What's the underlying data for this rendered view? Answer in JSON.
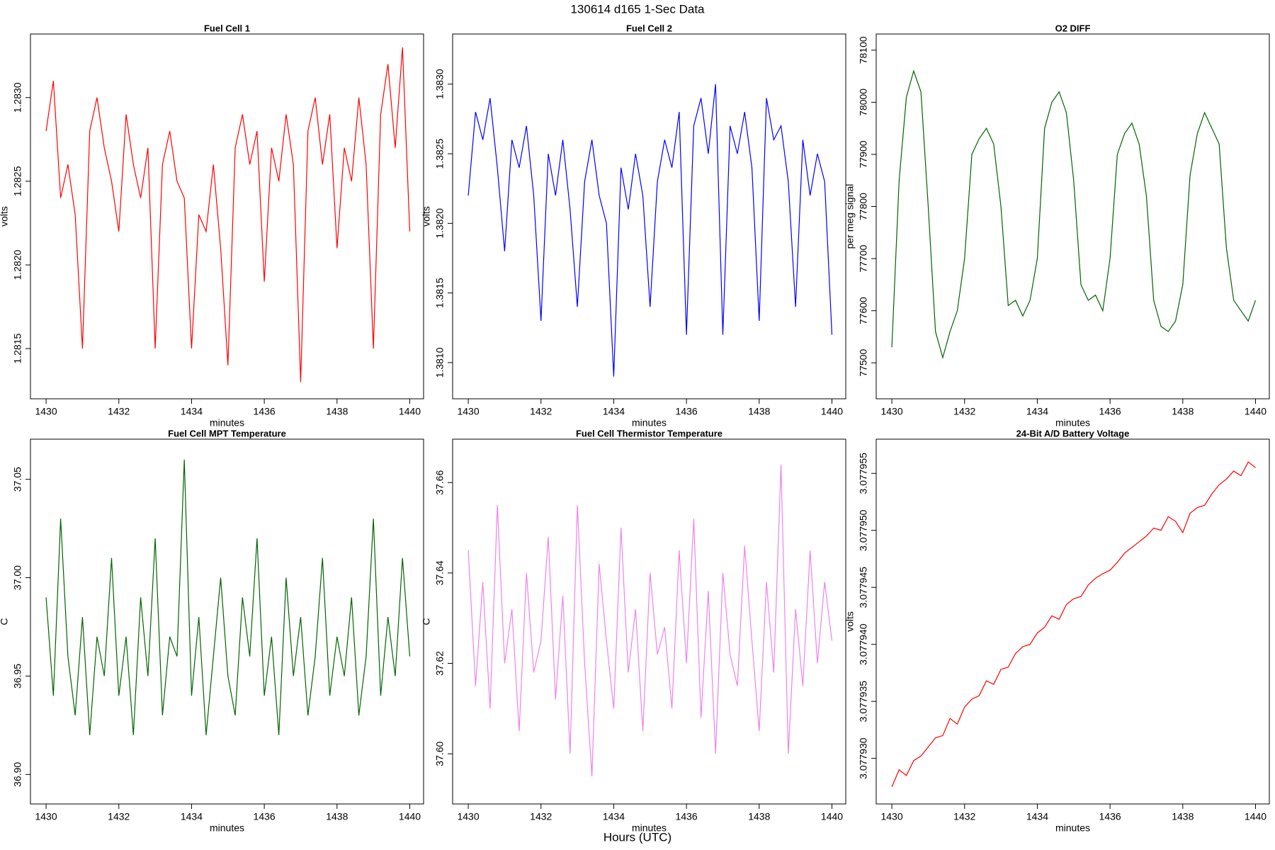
{
  "title": "130614   d165   1-Sec Data",
  "xlabel": "Hours (UTC)",
  "chart_data": [
    {
      "type": "line",
      "title": "Fuel Cell 1",
      "xlabel": "minutes",
      "ylabel": "volts",
      "color": "#ff0000",
      "xlim": [
        1429.57,
        1440.38
      ],
      "xticks": [
        1430,
        1432,
        1434,
        1436,
        1438,
        1440
      ],
      "ylim": [
        1.2812,
        1.28338
      ],
      "yticks": [
        {
          "value": 1.2815,
          "label": "1.2815"
        },
        {
          "value": 1.282,
          "label": "1.2820"
        },
        1.2825,
        {
          "value": 1.283,
          "label": "1.2830"
        }
      ],
      "x": [
        1430,
        1430.2,
        1430.4,
        1430.6,
        1430.8,
        1431,
        1431.2,
        1431.4,
        1431.6,
        1431.8,
        1432,
        1432.2,
        1432.4,
        1432.6,
        1432.8,
        1433,
        1433.2,
        1433.4,
        1433.6,
        1433.8,
        1434,
        1434.2,
        1434.4,
        1434.6,
        1434.8,
        1435,
        1435.2,
        1435.4,
        1435.6,
        1435.8,
        1436,
        1436.2,
        1436.4,
        1436.6,
        1436.8,
        1437,
        1437.2,
        1437.4,
        1437.6,
        1437.8,
        1438,
        1438.2,
        1438.4,
        1438.6,
        1438.8,
        1439,
        1439.2,
        1439.4,
        1439.6,
        1439.8,
        1440
      ],
      "values": [
        1.2828,
        1.2831,
        1.2824,
        1.2826,
        1.2823,
        1.2815,
        1.2828,
        1.283,
        1.2827,
        1.2825,
        1.2822,
        1.2829,
        1.2826,
        1.2824,
        1.2827,
        1.2815,
        1.2826,
        1.2828,
        1.2825,
        1.2824,
        1.2815,
        1.2823,
        1.2822,
        1.2826,
        1.2821,
        1.2814,
        1.2827,
        1.2829,
        1.2826,
        1.2828,
        1.2819,
        1.2827,
        1.2825,
        1.2829,
        1.2826,
        1.2813,
        1.2828,
        1.283,
        1.2826,
        1.2829,
        1.2821,
        1.2827,
        1.2825,
        1.283,
        1.2826,
        1.2815,
        1.2829,
        1.2832,
        1.2827,
        1.2833,
        1.2822
      ]
    },
    {
      "type": "line",
      "title": "Fuel Cell 2",
      "xlabel": "minutes",
      "ylabel": "volts",
      "color": "#0000ff",
      "xlim": [
        1429.57,
        1440.38
      ],
      "xticks": [
        1430,
        1432,
        1434,
        1436,
        1438,
        1440
      ],
      "ylim": [
        1.38074,
        1.38336
      ],
      "yticks": [
        {
          "value": 1.381,
          "label": "1.3810"
        },
        1.3815,
        {
          "value": 1.382,
          "label": "1.3820"
        },
        1.3825,
        {
          "value": 1.383,
          "label": "1.3830"
        }
      ],
      "x": [
        1430,
        1430.2,
        1430.4,
        1430.6,
        1430.8,
        1431,
        1431.2,
        1431.4,
        1431.6,
        1431.8,
        1432,
        1432.2,
        1432.4,
        1432.6,
        1432.8,
        1433,
        1433.2,
        1433.4,
        1433.6,
        1433.8,
        1434,
        1434.2,
        1434.4,
        1434.6,
        1434.8,
        1435,
        1435.2,
        1435.4,
        1435.6,
        1435.8,
        1436,
        1436.2,
        1436.4,
        1436.6,
        1436.8,
        1437,
        1437.2,
        1437.4,
        1437.6,
        1437.8,
        1438,
        1438.2,
        1438.4,
        1438.6,
        1438.8,
        1439,
        1439.2,
        1439.4,
        1439.6,
        1439.8,
        1440
      ],
      "values": [
        1.3822,
        1.3828,
        1.3826,
        1.3829,
        1.3824,
        1.3818,
        1.3826,
        1.3824,
        1.3827,
        1.3822,
        1.3813,
        1.3825,
        1.3822,
        1.3826,
        1.3821,
        1.3814,
        1.3823,
        1.3826,
        1.3822,
        1.382,
        1.3809,
        1.3824,
        1.3821,
        1.3825,
        1.3822,
        1.3814,
        1.3823,
        1.3826,
        1.3824,
        1.3828,
        1.3812,
        1.3827,
        1.3829,
        1.3825,
        1.383,
        1.3812,
        1.3827,
        1.3825,
        1.3828,
        1.3824,
        1.3813,
        1.3829,
        1.3826,
        1.3827,
        1.3823,
        1.3814,
        1.3826,
        1.3822,
        1.3825,
        1.3823,
        1.3812
      ]
    },
    {
      "type": "line",
      "title": "O2 DIFF",
      "xlabel": "minutes",
      "ylabel": "per meg signal",
      "color": "#006400",
      "xlim": [
        1429.57,
        1440.38
      ],
      "xticks": [
        1430,
        1432,
        1434,
        1436,
        1438,
        1440
      ],
      "ylim": [
        77431,
        78131
      ],
      "yticks": [
        77500,
        77600,
        77700,
        77800,
        77900,
        78000,
        78100
      ],
      "x": [
        1430,
        1430.2,
        1430.4,
        1430.6,
        1430.8,
        1431,
        1431.2,
        1431.4,
        1431.6,
        1431.8,
        1432,
        1432.2,
        1432.4,
        1432.6,
        1432.8,
        1433,
        1433.2,
        1433.4,
        1433.6,
        1433.8,
        1434,
        1434.2,
        1434.4,
        1434.6,
        1434.8,
        1435,
        1435.2,
        1435.4,
        1435.6,
        1435.8,
        1436,
        1436.2,
        1436.4,
        1436.6,
        1436.8,
        1437,
        1437.2,
        1437.4,
        1437.6,
        1437.8,
        1438,
        1438.2,
        1438.4,
        1438.6,
        1438.8,
        1439,
        1439.2,
        1439.4,
        1439.6,
        1439.8,
        1440
      ],
      "values": [
        77530,
        77850,
        78010,
        78060,
        78020,
        77800,
        77560,
        77510,
        77560,
        77600,
        77700,
        77900,
        77930,
        77950,
        77920,
        77800,
        77610,
        77620,
        77590,
        77620,
        77700,
        77950,
        78000,
        78020,
        77980,
        77850,
        77650,
        77620,
        77630,
        77600,
        77700,
        77900,
        77940,
        77960,
        77920,
        77820,
        77620,
        77570,
        77560,
        77580,
        77650,
        77860,
        77940,
        77980,
        77950,
        77920,
        77720,
        77620,
        77600,
        77580,
        77620
      ]
    },
    {
      "type": "line",
      "title": "Fuel Cell MPT Temperature",
      "xlabel": "minutes",
      "ylabel": "C",
      "color": "#006400",
      "xlim": [
        1429.57,
        1440.38
      ],
      "xticks": [
        1430,
        1432,
        1434,
        1436,
        1438,
        1440
      ],
      "ylim": [
        36.885,
        37.0704
      ],
      "yticks": [
        {
          "value": 36.9,
          "label": "36.90"
        },
        36.95,
        {
          "value": 37.0,
          "label": "37.00"
        },
        37.05
      ],
      "x": [
        1430,
        1430.2,
        1430.4,
        1430.6,
        1430.8,
        1431,
        1431.2,
        1431.4,
        1431.6,
        1431.8,
        1432,
        1432.2,
        1432.4,
        1432.6,
        1432.8,
        1433,
        1433.2,
        1433.4,
        1433.6,
        1433.8,
        1434,
        1434.2,
        1434.4,
        1434.6,
        1434.8,
        1435,
        1435.2,
        1435.4,
        1435.6,
        1435.8,
        1436,
        1436.2,
        1436.4,
        1436.6,
        1436.8,
        1437,
        1437.2,
        1437.4,
        1437.6,
        1437.8,
        1438,
        1438.2,
        1438.4,
        1438.6,
        1438.8,
        1439,
        1439.2,
        1439.4,
        1439.6,
        1439.8,
        1440
      ],
      "values": [
        36.99,
        36.94,
        37.03,
        36.96,
        36.93,
        36.98,
        36.92,
        36.97,
        36.95,
        37.01,
        36.94,
        36.97,
        36.92,
        36.99,
        36.95,
        37.02,
        36.93,
        36.97,
        36.96,
        37.06,
        36.94,
        36.98,
        36.92,
        36.96,
        37.0,
        36.95,
        36.93,
        36.99,
        36.96,
        37.02,
        36.94,
        36.97,
        36.92,
        37.0,
        36.95,
        36.98,
        36.93,
        36.96,
        37.01,
        36.94,
        36.97,
        36.95,
        36.99,
        36.93,
        36.96,
        37.03,
        36.94,
        36.98,
        36.95,
        37.01,
        36.96
      ]
    },
    {
      "type": "line",
      "title": "Fuel Cell Thermistor Temperature",
      "xlabel": "minutes",
      "ylabel": "C",
      "color": "#ee82ee",
      "xlim": [
        1429.57,
        1440.38
      ],
      "xticks": [
        1430,
        1432,
        1434,
        1436,
        1438,
        1440
      ],
      "ylim": [
        37.5889,
        37.6696
      ],
      "yticks": [
        {
          "value": 37.6,
          "label": "37.60"
        },
        37.62,
        37.64,
        37.66
      ],
      "x": [
        1430,
        1430.2,
        1430.4,
        1430.6,
        1430.8,
        1431,
        1431.2,
        1431.4,
        1431.6,
        1431.8,
        1432,
        1432.2,
        1432.4,
        1432.6,
        1432.8,
        1433,
        1433.2,
        1433.4,
        1433.6,
        1433.8,
        1434,
        1434.2,
        1434.4,
        1434.6,
        1434.8,
        1435,
        1435.2,
        1435.4,
        1435.6,
        1435.8,
        1436,
        1436.2,
        1436.4,
        1436.6,
        1436.8,
        1437,
        1437.2,
        1437.4,
        1437.6,
        1437.8,
        1438,
        1438.2,
        1438.4,
        1438.6,
        1438.8,
        1439,
        1439.2,
        1439.4,
        1439.6,
        1439.8,
        1440
      ],
      "values": [
        37.645,
        37.615,
        37.638,
        37.61,
        37.655,
        37.62,
        37.632,
        37.605,
        37.64,
        37.618,
        37.625,
        37.648,
        37.612,
        37.635,
        37.6,
        37.655,
        37.62,
        37.595,
        37.642,
        37.625,
        37.61,
        37.65,
        37.618,
        37.632,
        37.605,
        37.64,
        37.622,
        37.628,
        37.61,
        37.645,
        37.62,
        37.652,
        37.608,
        37.636,
        37.6,
        37.64,
        37.622,
        37.615,
        37.646,
        37.625,
        37.605,
        37.638,
        37.618,
        37.664,
        37.6,
        37.632,
        37.615,
        37.645,
        37.62,
        37.638,
        37.625
      ]
    },
    {
      "type": "line",
      "title": "24-Bit A/D Battery Voltage",
      "xlabel": "minutes",
      "ylabel": "volts",
      "color": "#ff0000",
      "xlim": [
        1429.57,
        1440.38
      ],
      "xticks": [
        1430,
        1432,
        1434,
        1436,
        1438,
        1440
      ],
      "ylim": [
        3.077926,
        3.077958
      ],
      "yticks": [
        {
          "value": 3.07793,
          "label": "3.077930"
        },
        3.077935,
        {
          "value": 3.07794,
          "label": "3.077940"
        },
        3.077945,
        {
          "value": 3.07795,
          "label": "3.077950"
        },
        3.077955
      ],
      "x": [
        1430,
        1430.2,
        1430.4,
        1430.6,
        1430.8,
        1431,
        1431.2,
        1431.4,
        1431.6,
        1431.8,
        1432,
        1432.2,
        1432.4,
        1432.6,
        1432.8,
        1433,
        1433.2,
        1433.4,
        1433.6,
        1433.8,
        1434,
        1434.2,
        1434.4,
        1434.6,
        1434.8,
        1435,
        1435.2,
        1435.4,
        1435.6,
        1435.8,
        1436,
        1436.2,
        1436.4,
        1436.6,
        1436.8,
        1437,
        1437.2,
        1437.4,
        1437.6,
        1437.8,
        1438,
        1438.2,
        1438.4,
        1438.6,
        1438.8,
        1439,
        1439.2,
        1439.4,
        1439.6,
        1439.8,
        1440
      ],
      "values": [
        3.0779275,
        3.077929,
        3.0779285,
        3.0779298,
        3.0779302,
        3.077931,
        3.0779318,
        3.077932,
        3.0779335,
        3.077933,
        3.0779345,
        3.0779352,
        3.0779355,
        3.0779368,
        3.0779365,
        3.0779378,
        3.077938,
        3.0779392,
        3.0779398,
        3.07794,
        3.077941,
        3.0779415,
        3.0779425,
        3.0779422,
        3.0779435,
        3.077944,
        3.0779442,
        3.0779452,
        3.0779458,
        3.0779462,
        3.0779465,
        3.0779472,
        3.077948,
        3.0779485,
        3.077949,
        3.0779495,
        3.0779502,
        3.07795,
        3.0779512,
        3.0779508,
        3.0779498,
        3.0779515,
        3.077952,
        3.0779522,
        3.0779532,
        3.077954,
        3.0779545,
        3.0779552,
        3.0779548,
        3.077956,
        3.0779555
      ]
    }
  ]
}
